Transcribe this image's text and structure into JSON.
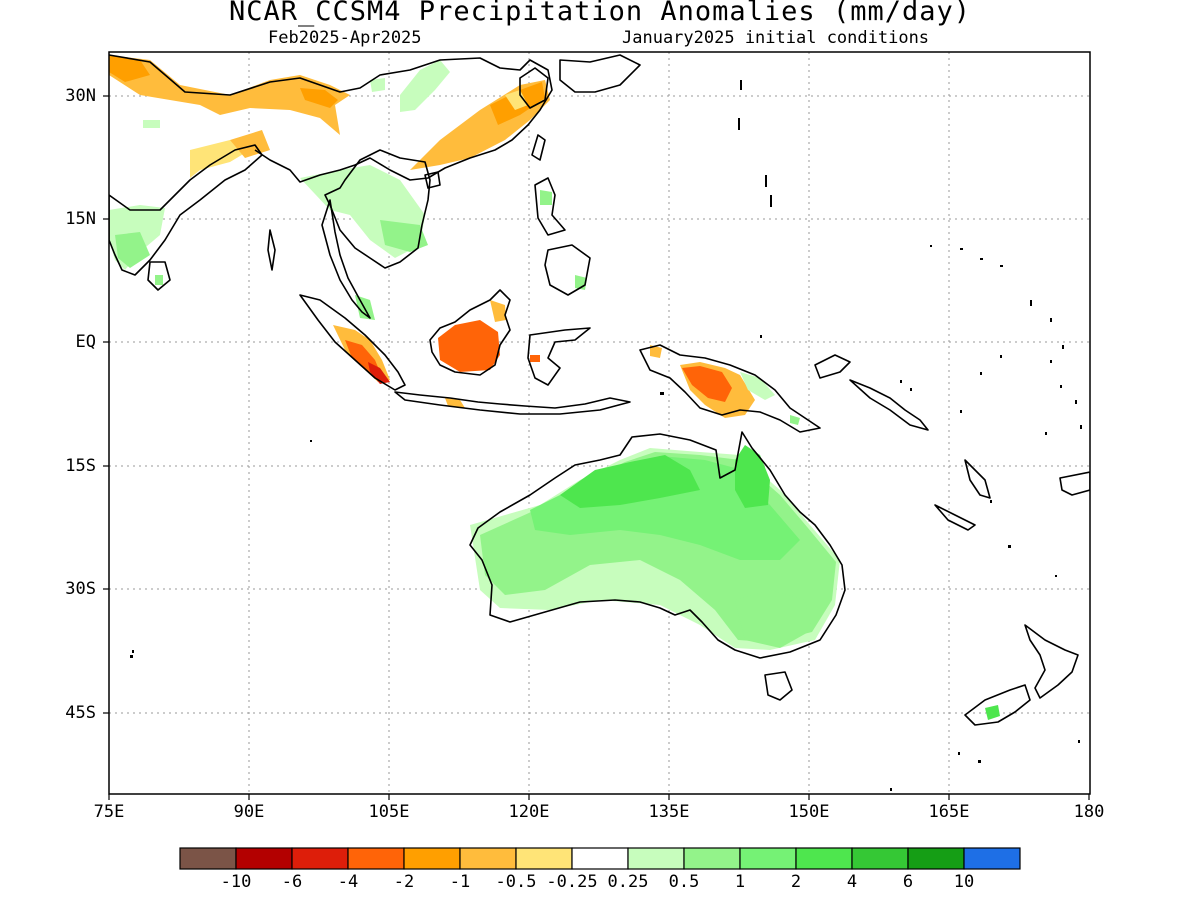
{
  "title": "NCAR_CCSM4 Precipitation Anomalies (mm/day)",
  "subtitle_left": "Feb2025-Apr2025",
  "subtitle_right": "January2025 initial conditions",
  "map": {
    "lon_range": [
      75,
      180
    ],
    "lat_range": [
      -53,
      35
    ],
    "x_ticks": [
      "75E",
      "90E",
      "105E",
      "120E",
      "135E",
      "150E",
      "165E",
      "180"
    ],
    "y_ticks": [
      "30N",
      "15N",
      "EQ",
      "15S",
      "30S",
      "45S"
    ],
    "grid": true
  },
  "colorbar": {
    "colors": [
      "#7b5447",
      "#b30000",
      "#dd1e0a",
      "#ff6408",
      "#ff9f00",
      "#ffbc3c",
      "#ffe477",
      "#ffffff",
      "#c7fdbd",
      "#93f38a",
      "#75f275",
      "#4ee64e",
      "#35c835",
      "#159e15",
      "#1e6fe6"
    ],
    "labels": [
      "-10",
      "-6",
      "-4",
      "-2",
      "-1",
      "-0.5",
      "-0.25",
      "0.25",
      "0.5",
      "1",
      "2",
      "4",
      "6",
      "10"
    ]
  }
}
